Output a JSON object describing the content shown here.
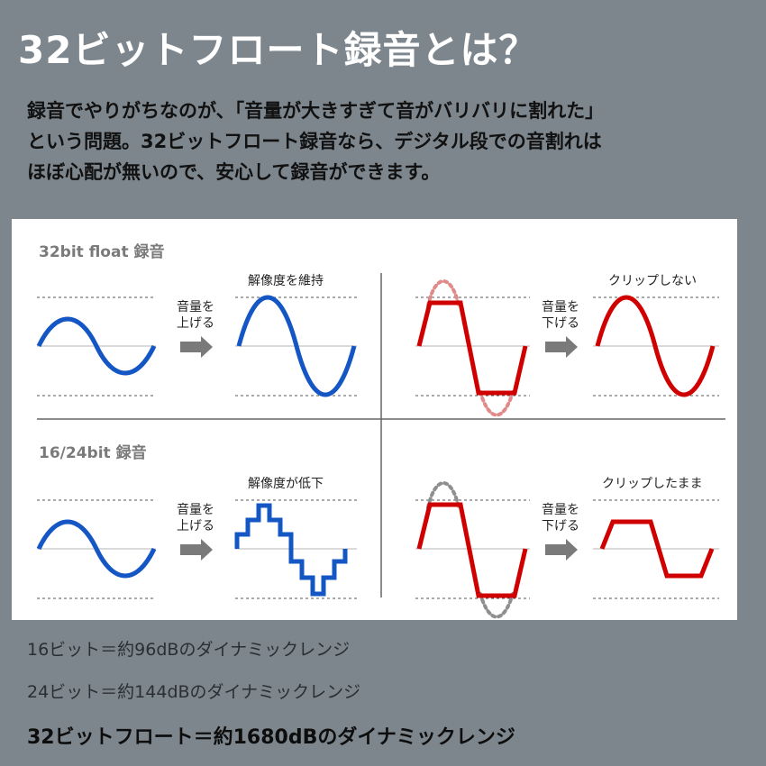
{
  "title": "32ビットフロート録音とは？",
  "intro_lines": [
    "録音でやりがちなのが、「音量が大きすぎて音がバリバリに割れた」",
    "という問題。32ビットフロート録音なら、デジタル段での音割れは",
    "ほぼ心配が無いので、安心して録音ができます。"
  ],
  "diagram": {
    "top_heading": "32bit float 録音",
    "bottom_heading": "16/24bit 録音",
    "raise_label_1": "音量を",
    "raise_label_2": "上げる",
    "lower_label_1": "音量を",
    "lower_label_2": "下げる",
    "top_left_result": "解像度を維持",
    "top_right_result": "クリップしない",
    "bottom_left_result": "解像度が低下",
    "bottom_right_result": "クリップしたまま",
    "colors": {
      "float": "#1456c4",
      "clip": "#d00000"
    }
  },
  "footer": {
    "line1": "16ビット＝約96dBのダイナミックレンジ",
    "line2": "24ビット＝約144dBのダイナミックレンジ",
    "line3": "32ビットフロート＝約1680dBのダイナミックレンジ"
  }
}
